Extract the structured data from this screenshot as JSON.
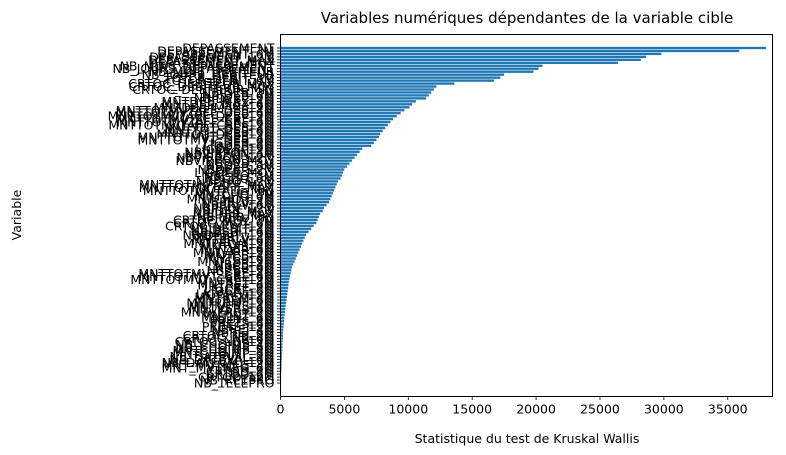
{
  "chart_data": {
    "type": "bar",
    "orientation": "horizontal",
    "title": "Variables numériques dépendantes de la variable cible",
    "xlabel": "Statistique du test de Kruskal Wallis",
    "ylabel": "Variable",
    "xlim": [
      0,
      38500
    ],
    "xticks": [
      0,
      5000,
      10000,
      15000,
      20000,
      25000,
      30000,
      35000
    ],
    "grid": false,
    "legend": "none",
    "bar_color": "#1f77b4",
    "bars_top_to_bottom": [
      {
        "label": "DEPASSEMENT",
        "value": 38000
      },
      {
        "label": "DEPASSEMENT_3M",
        "value": 35900
      },
      {
        "label": "DEPASSEMENT_6M",
        "value": 29800
      },
      {
        "label": "DEPASSEMENT_12M",
        "value": 28600
      },
      {
        "label": "DEPASSEMENT_MAX",
        "value": 28200
      },
      {
        "label": "DEPASSEMENT_MOY",
        "value": 26400
      },
      {
        "label": "NB_MOIS_DEPASSEMENT",
        "value": 20500
      },
      {
        "label": "NB_JOURS_DEPASSEMENT",
        "value": 20200
      },
      {
        "label": "NB_MOIS_DEBITEUR",
        "value": 19800
      },
      {
        "label": "NB_JOURS_DEBITEUR",
        "value": 17500
      },
      {
        "label": "TOTCR_DEBIT_3M",
        "value": 17200
      },
      {
        "label": "TOTCR_DEBIT_6M",
        "value": 16700
      },
      {
        "label": "CRTOC_DEBITEUR_MAX",
        "value": 13600
      },
      {
        "label": "CRTOC_DEBITEUR_MOY",
        "value": 12200
      },
      {
        "label": "CRTOC_DEBITEUR_MIN",
        "value": 12000
      },
      {
        "label": "NBJDEB_3M",
        "value": 11800
      },
      {
        "label": "NBJDEB_6M",
        "value": 11600
      },
      {
        "label": "NBJDEB_12M",
        "value": 11400
      },
      {
        "label": "MNTDEB_MAX_3M",
        "value": 10600
      },
      {
        "label": "MNTDEB_MAX_6M",
        "value": 10300
      },
      {
        "label": "MNTDEB_MAX_12M",
        "value": 10100
      },
      {
        "label": "MNTTOTMVTAFF_DEB_3M",
        "value": 9700
      },
      {
        "label": "MNTTOTMVTAFF_DEB_6M",
        "value": 9400
      },
      {
        "label": "MNTTOTMVTAFF_DEB_12M",
        "value": 9100
      },
      {
        "label": "MNTTOTMVTAFF_CRE_3M",
        "value": 8800
      },
      {
        "label": "MNTTOTMVTAFF_CRE_6M",
        "value": 8600
      },
      {
        "label": "MNTTOTMVTAFF_CRE_12M",
        "value": 8400
      },
      {
        "label": "MNTTOT_DEB_3M",
        "value": 8200
      },
      {
        "label": "MNTTOT_DEB_6M",
        "value": 8000
      },
      {
        "label": "MNTTOT_DEB_12M",
        "value": 7800
      },
      {
        "label": "MNTTOTMVT_DEB_3M",
        "value": 7700
      },
      {
        "label": "MNTTOTMVT_DEB_6M",
        "value": 7500
      },
      {
        "label": "LIGDEB_3M",
        "value": 7300
      },
      {
        "label": "LIGDEB_6M",
        "value": 7100
      },
      {
        "label": "LIGDEB_12M",
        "value": 6400
      },
      {
        "label": "NBVIRPON_3M",
        "value": 6200
      },
      {
        "label": "NBVIRPON_6M",
        "value": 6000
      },
      {
        "label": "NBVIRPON_12M",
        "value": 5800
      },
      {
        "label": "NBVIRPON_MOY",
        "value": 5600
      },
      {
        "label": "NBDEB_3M",
        "value": 5400
      },
      {
        "label": "NBDEB_6M",
        "value": 5200
      },
      {
        "label": "NBDEB_12M",
        "value": 5000
      },
      {
        "label": "LIGDEB_MOY",
        "value": 4900
      },
      {
        "label": "NBCHQ_3M",
        "value": 4800
      },
      {
        "label": "NBCHQ_6M",
        "value": 4700
      },
      {
        "label": "NBCHQ_12M",
        "value": 4500
      },
      {
        "label": "MNTTOTMVTAFF_MOY",
        "value": 4400
      },
      {
        "label": "MNTTOTMVTAFF_MAX",
        "value": 4300
      },
      {
        "label": "MNTTOTMVTAFF_MIN",
        "value": 4200
      },
      {
        "label": "MNTCHQ_3M",
        "value": 4100
      },
      {
        "label": "MNTCHQ_6M",
        "value": 4000
      },
      {
        "label": "MNTCHQ_12M",
        "value": 3900
      },
      {
        "label": "NBPRLV_3M",
        "value": 3800
      },
      {
        "label": "NBPRLV_6M",
        "value": 3600
      },
      {
        "label": "NBPRLV_12M",
        "value": 3400
      },
      {
        "label": "NBJDEB_MOY",
        "value": 3300
      },
      {
        "label": "NBJDEB_MAX",
        "value": 3100
      },
      {
        "label": "NBJDEB_MIN",
        "value": 3000
      },
      {
        "label": "CRTOC_MOY_3M",
        "value": 2900
      },
      {
        "label": "CRTOC_MOY_6M",
        "value": 2800
      },
      {
        "label": "CRTOC_MOY_12M",
        "value": 2600
      },
      {
        "label": "NBJDEBIT_3M",
        "value": 2400
      },
      {
        "label": "NBJDEBIT_6M",
        "value": 2200
      },
      {
        "label": "NBJDEBIT_12M",
        "value": 2000
      },
      {
        "label": "MNTPRLV_3M",
        "value": 1900
      },
      {
        "label": "MNTPRLV_6M",
        "value": 1800
      },
      {
        "label": "MNTPRLV_12M",
        "value": 1700
      },
      {
        "label": "MNTVIR_3M",
        "value": 1600
      },
      {
        "label": "MNTVIR_6M",
        "value": 1500
      },
      {
        "label": "MNTVIR_12M",
        "value": 1400
      },
      {
        "label": "MNTCB_3M",
        "value": 1300
      },
      {
        "label": "MNTCB_6M",
        "value": 1200
      },
      {
        "label": "MNTCB_12M",
        "value": 1100
      },
      {
        "label": "NBCB_3M",
        "value": 1000
      },
      {
        "label": "NBCB_6M",
        "value": 900
      },
      {
        "label": "NBCB_12M",
        "value": 850
      },
      {
        "label": "MNTTOTMVT_CRE_3M",
        "value": 800
      },
      {
        "label": "MNTTOTMVT_CRE_6M",
        "value": 750
      },
      {
        "label": "MNTTOTMVT_CRE_12M",
        "value": 700
      },
      {
        "label": "MNTRET_3M",
        "value": 650
      },
      {
        "label": "MNTRET_6M",
        "value": 620
      },
      {
        "label": "LIGCRE_3M",
        "value": 600
      },
      {
        "label": "LIGCRE_6M",
        "value": 560
      },
      {
        "label": "LIGCRE_12M",
        "value": 530
      },
      {
        "label": "MNTREM_3M",
        "value": 500
      },
      {
        "label": "MNTREM_6M",
        "value": 470
      },
      {
        "label": "MNTREM_12M",
        "value": 440
      },
      {
        "label": "MNTVERS_3M",
        "value": 410
      },
      {
        "label": "MNTVERS_6M",
        "value": 380
      },
      {
        "label": "MNTVERS_12M",
        "value": 350
      },
      {
        "label": "MNTINT_3M",
        "value": 320
      },
      {
        "label": "MNTINT_6M",
        "value": 300
      },
      {
        "label": "PRETS_3M",
        "value": 280
      },
      {
        "label": "PRETS_6M",
        "value": 260
      },
      {
        "label": "PRETS_12M",
        "value": 240
      },
      {
        "label": "NBREJ_3M",
        "value": 220
      },
      {
        "label": "NBREJ_6M",
        "value": 200
      },
      {
        "label": "CRTOC_NB_3M",
        "value": 190
      },
      {
        "label": "CRTOC_NB_6M",
        "value": 180
      },
      {
        "label": "CRTOC_NB_12M",
        "value": 170
      },
      {
        "label": "NB_CHQIMP_3M",
        "value": 160
      },
      {
        "label": "NB_CHQIMP_6M",
        "value": 150
      },
      {
        "label": "MNTCHQIMP_3M",
        "value": 140
      },
      {
        "label": "MNTCHQIMP_6M",
        "value": 130
      },
      {
        "label": "NB_DATEVAL_3M",
        "value": 120
      },
      {
        "label": "NB_DATEVAL_6M",
        "value": 110
      },
      {
        "label": "NB_DATEVAL_12M",
        "value": 100
      },
      {
        "label": "MNT_MVTNEG_3M",
        "value": 90
      },
      {
        "label": "MNT_MVTNEG_6M",
        "value": 80
      },
      {
        "label": "CRTOD_3M",
        "value": 70
      },
      {
        "label": "CRTOD_6M",
        "value": 60
      },
      {
        "label": "CRTOD_12M",
        "value": 50
      },
      {
        "label": "NB_RETPRO",
        "value": 40
      },
      {
        "label": "NB_TELEPRO",
        "value": 30
      }
    ]
  }
}
